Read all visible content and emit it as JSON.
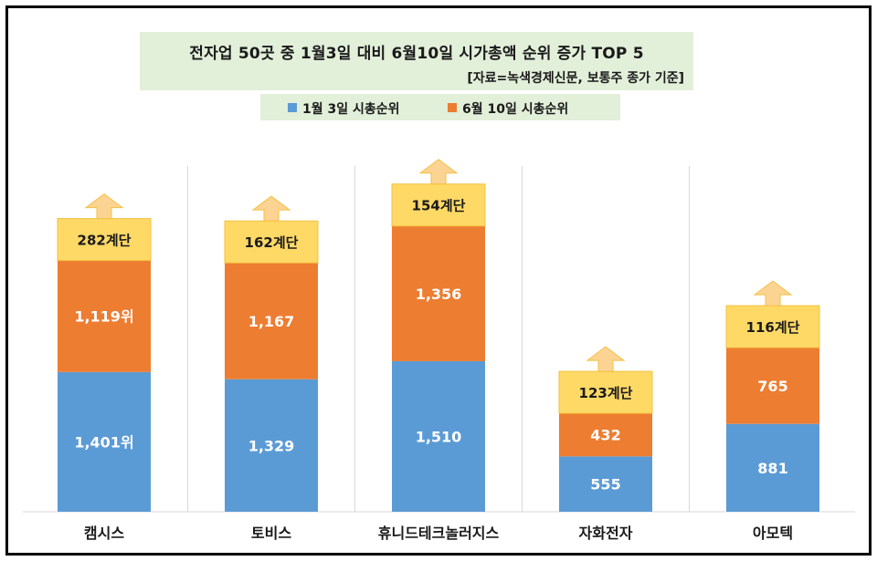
{
  "chart_data": {
    "type": "bar",
    "title": "전자업 50곳 중 1월3일 대비 6월10일 시가총액 순위 증가 TOP 5",
    "subtitle": "[자료=녹색경제신문, 보통주 종가 기준]",
    "categories": [
      "캠시스",
      "토비스",
      "휴니드테크놀러지스",
      "자화전자",
      "아모텍"
    ],
    "series": [
      {
        "name": "1월 3일 시총순위",
        "color": "#5b9bd5",
        "values": [
          1401,
          1329,
          1510,
          555,
          881
        ],
        "labels": [
          "1,401위",
          "1,329",
          "1,510",
          "555",
          "881"
        ]
      },
      {
        "name": "6월 10일 시총순위",
        "color": "#ed7d31",
        "values": [
          1119,
          1167,
          1356,
          432,
          765
        ],
        "labels": [
          "1,119위",
          "1,167",
          "1,356",
          "432",
          "765"
        ]
      }
    ],
    "changes": [
      "282계단",
      "162계단",
      "154계단",
      "123계단",
      "116계단"
    ],
    "badge_color": "#ffd966",
    "arrow_color": "#fbd493",
    "legend_placement": "top"
  }
}
